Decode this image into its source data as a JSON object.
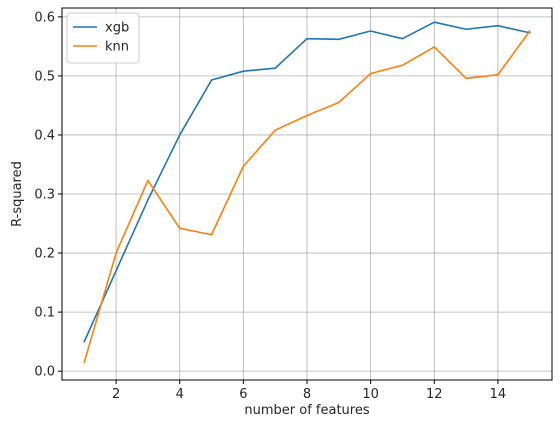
{
  "chart_data": {
    "type": "line",
    "title": "",
    "xlabel": "number of features",
    "ylabel": "R-squared",
    "xlim": [
      0.3,
      15.7
    ],
    "ylim": [
      -0.015,
      0.615
    ],
    "xticks": [
      2,
      4,
      6,
      8,
      10,
      12,
      14
    ],
    "yticks": [
      0.0,
      0.1,
      0.2,
      0.3,
      0.4,
      0.5,
      0.6
    ],
    "grid": true,
    "legend_position": "top-left",
    "x": [
      1,
      2,
      3,
      4,
      5,
      6,
      7,
      8,
      9,
      10,
      11,
      12,
      13,
      14,
      15
    ],
    "series": [
      {
        "name": "xgb",
        "color": "#1f77b4",
        "values": [
          0.05,
          0.17,
          0.29,
          0.4,
          0.493,
          0.508,
          0.513,
          0.563,
          0.562,
          0.576,
          0.563,
          0.591,
          0.579,
          0.585,
          0.573
        ]
      },
      {
        "name": "knn",
        "color": "#ff7f0e",
        "values": [
          0.015,
          0.2,
          0.323,
          0.242,
          0.231,
          0.347,
          0.408,
          0.433,
          0.455,
          0.504,
          0.518,
          0.549,
          0.496,
          0.502,
          0.576
        ]
      }
    ]
  }
}
